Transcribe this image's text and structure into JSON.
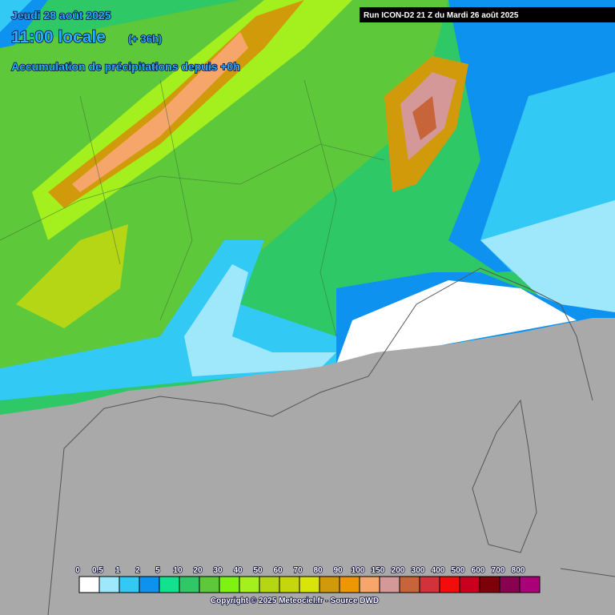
{
  "header": {
    "date": "Jeudi 28 août 2025",
    "time": "11:00 locale",
    "lead": "(+ 36h)",
    "subtitle": "Accumulation de précipitations depuis +0h"
  },
  "run": "Run ICON-D2 21 Z du Mardi 26 août 2025",
  "legend": {
    "ticks": [
      0,
      0.5,
      1,
      2,
      5,
      10,
      20,
      30,
      40,
      50,
      60,
      70,
      80,
      90,
      100,
      150,
      200,
      300,
      400,
      500,
      600,
      700,
      800
    ],
    "colors": [
      "#ffffff",
      "#9fe8fb",
      "#33c9f5",
      "#0d93ef",
      "#12e28e",
      "#2fc866",
      "#5dc83a",
      "#7ef212",
      "#a4ef1e",
      "#b5d614",
      "#c6d60e",
      "#d9e40a",
      "#d19a0a",
      "#ee9605",
      "#f6a66a",
      "#d49898",
      "#c8643a",
      "#d3323c",
      "#f20d0d",
      "#c8001e",
      "#7e0008",
      "#8a0050",
      "#ab0078"
    ]
  },
  "copyright": "Copyright © 2025 Meteociel.fr - Source DWD"
}
